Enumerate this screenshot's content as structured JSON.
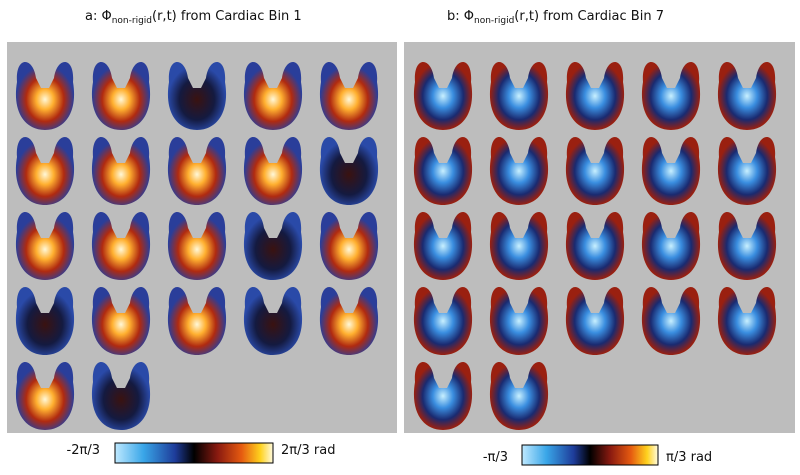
{
  "panels": [
    {
      "title": {
        "prefix": "a: Φ",
        "subscript": "non-rigid",
        "suffix": "(r,t) from  Cardiac Bin 1"
      },
      "colorbar": {
        "min_label": "-2π/3",
        "max_label": "2π/3 rad"
      }
    },
    {
      "title": {
        "prefix": "b: Φ",
        "subscript": "non-rigid",
        "suffix": "(r,t) from  Cardiac Bin 7"
      },
      "colorbar": {
        "min_label": "-π/3",
        "max_label": "π/3 rad"
      }
    }
  ]
}
